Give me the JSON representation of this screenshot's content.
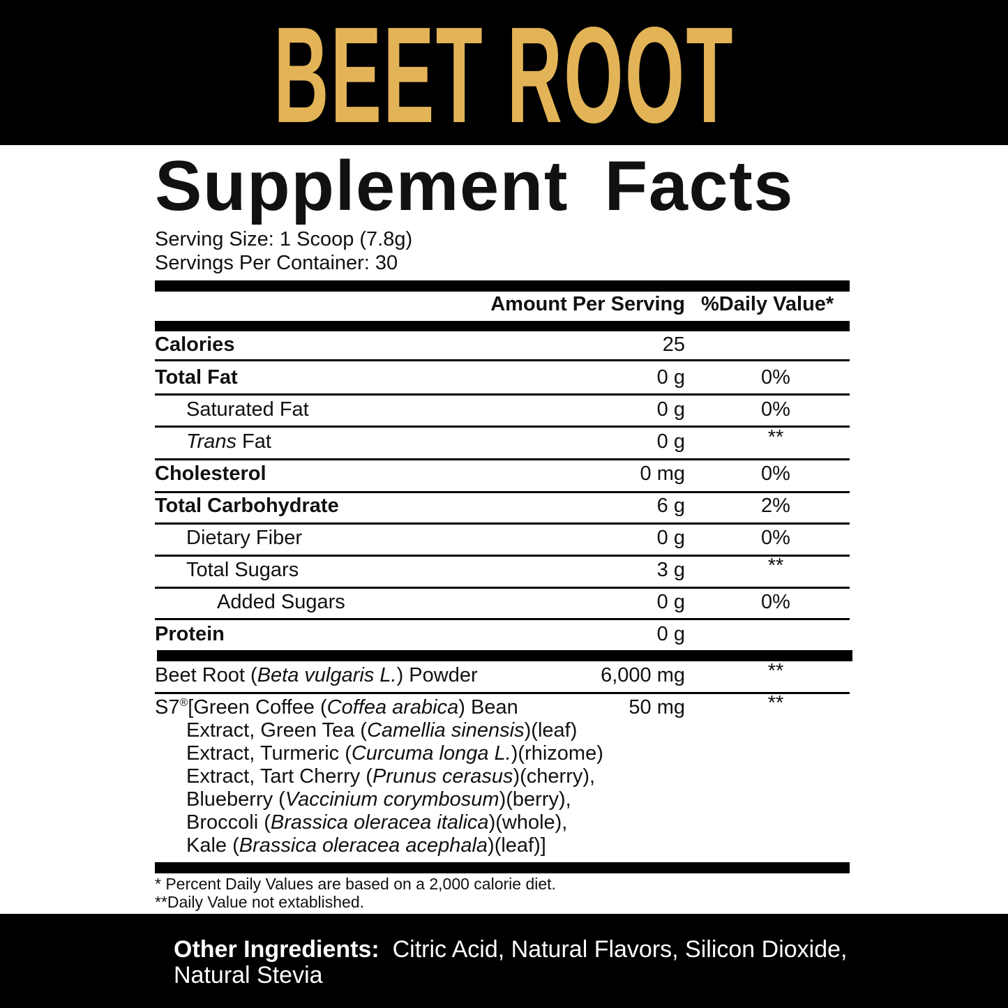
{
  "brand": {
    "title": "BEET ROOT",
    "color": "#e3b457"
  },
  "label": {
    "title": "Supplement Facts",
    "serving_size": "Serving Size: 1 Scoop (7.8g)",
    "servings_per_container": "Servings Per Container: 30",
    "header_amount": "Amount Per Serving",
    "header_dv": "%Daily Value*"
  },
  "nutrients": [
    {
      "name": "Calories",
      "amount": "25",
      "dv": ""
    },
    {
      "name": "Total Fat",
      "amount": "0 g",
      "dv": "0%"
    },
    {
      "name": "Saturated Fat",
      "amount": "0 g",
      "dv": "0%"
    },
    {
      "name_italic": "Trans",
      "name": " Fat",
      "amount": "0 g",
      "dv": "**"
    },
    {
      "name": "Cholesterol",
      "amount": "0 mg",
      "dv": "0%"
    },
    {
      "name": "Total Carbohydrate",
      "amount": "6 g",
      "dv": "2%"
    },
    {
      "name": "Dietary Fiber",
      "amount": "0 g",
      "dv": "0%"
    },
    {
      "name": "Total Sugars",
      "amount": "3 g",
      "dv": "**"
    },
    {
      "name": "Added Sugars",
      "amount": "0 g",
      "dv": "0%"
    },
    {
      "name": "Protein",
      "amount": "0 g",
      "dv": ""
    }
  ],
  "beet_root": {
    "parts": [
      "Beet Root (",
      "Beta vulgaris L.",
      ") Powder"
    ],
    "amount": "6,000 mg",
    "dv": "**"
  },
  "s7": {
    "amount": "50 mg",
    "dv": "**",
    "mark": "S7",
    "reg": "®",
    "lines": [
      [
        "[Green Coffee (",
        "Coffea arabica",
        ") Bean"
      ],
      [
        "Extract, Green Tea (",
        "Camellia sinensis",
        ")(leaf)"
      ],
      [
        "Extract, Turmeric (",
        "Curcuma longa L.",
        ")(rhizome)"
      ],
      [
        "Extract, Tart Cherry (",
        "Prunus cerasus",
        ")(cherry),"
      ],
      [
        "Blueberry (",
        "Vaccinium corymbosum",
        ")(berry),"
      ],
      [
        "Broccoli (",
        "Brassica oleracea italica",
        ")(whole),"
      ],
      [
        "Kale (",
        "Brassica oleracea acephala",
        ")(leaf)]"
      ]
    ]
  },
  "footnotes": [
    "* Percent Daily Values are based on a 2,000 calorie diet.",
    "**Daily Value not extablished."
  ],
  "other_ingredients": {
    "label": "Other Ingredients:",
    "text": "Citric Acid, Natural Flavors, Silicon Dioxide, Natural Stevia"
  }
}
